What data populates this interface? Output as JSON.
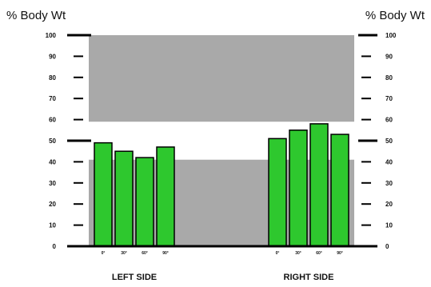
{
  "chart_data": {
    "type": "bar",
    "left_axis_title": "% Body Wt",
    "right_axis_title": "% Body Wt",
    "y_ticks": [
      "100",
      "90",
      "80",
      "70",
      "60",
      "50",
      "40",
      "30",
      "20",
      "10",
      "0"
    ],
    "ylim": [
      0,
      100
    ],
    "zones": [
      {
        "from": 59,
        "to": 100,
        "color": "#a9a9a9"
      },
      {
        "from": 0,
        "to": 41,
        "color": "#a9a9a9"
      }
    ],
    "bar_color": "#2ec82e",
    "groups": [
      {
        "name": "LEFT SIDE",
        "categories": [
          "0°",
          "30°",
          "60°",
          "90°"
        ],
        "values": [
          49,
          45,
          42,
          47
        ]
      },
      {
        "name": "RIGHT SIDE",
        "categories": [
          "0°",
          "30°",
          "60°",
          "90°"
        ],
        "values": [
          51,
          55,
          58,
          53
        ]
      }
    ]
  }
}
